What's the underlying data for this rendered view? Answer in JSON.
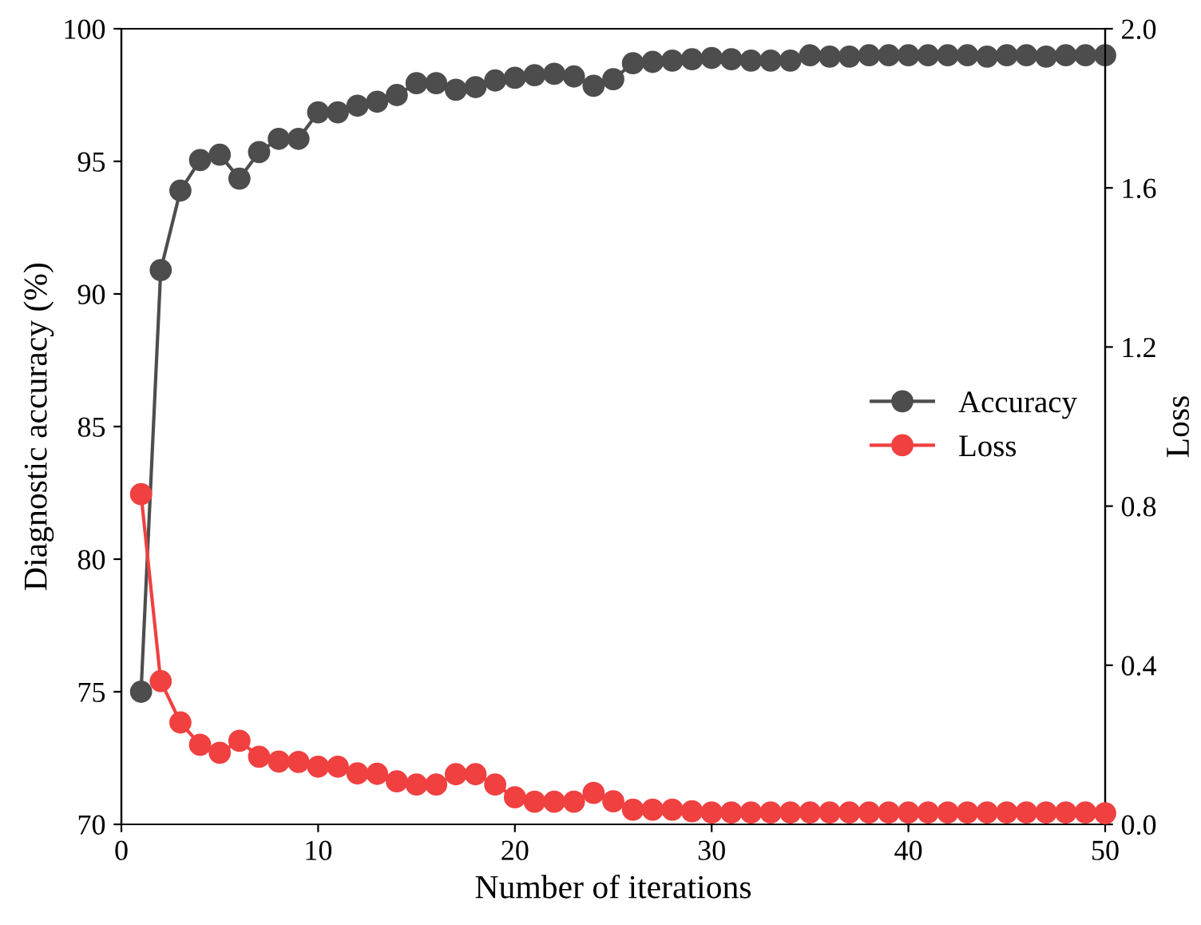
{
  "chart_data": {
    "type": "line",
    "xlabel": "Number of iterations",
    "ylabel": "Diagnostic accuracy (%)",
    "y2label": "Loss",
    "x": [
      1,
      2,
      3,
      4,
      5,
      6,
      7,
      8,
      9,
      10,
      11,
      12,
      13,
      14,
      15,
      16,
      17,
      18,
      19,
      20,
      21,
      22,
      23,
      24,
      25,
      26,
      27,
      28,
      29,
      30,
      31,
      32,
      33,
      34,
      35,
      36,
      37,
      38,
      39,
      40,
      41,
      42,
      43,
      44,
      45,
      46,
      47,
      48,
      49,
      50
    ],
    "series": [
      {
        "name": "Accuracy",
        "color": "#4d4d4d",
        "values": [
          75.0,
          90.9,
          93.9,
          95.05,
          95.25,
          94.35,
          95.35,
          95.85,
          95.85,
          96.85,
          96.85,
          97.1,
          97.25,
          97.5,
          97.95,
          97.95,
          97.7,
          97.8,
          98.05,
          98.15,
          98.25,
          98.3,
          98.2,
          97.85,
          98.1,
          98.7,
          98.75,
          98.8,
          98.85,
          98.9,
          98.85,
          98.8,
          98.8,
          98.8,
          99.0,
          98.95,
          98.95,
          99.0,
          99.0,
          99.0,
          99.0,
          99.0,
          99.0,
          98.95,
          99.0,
          99.0,
          98.95,
          99.0,
          99.0,
          99.0
        ]
      },
      {
        "name": "Loss",
        "color": "#f04040",
        "axis": "y2",
        "values": [
          0.83,
          0.36,
          0.256,
          0.2,
          0.18,
          0.21,
          0.17,
          0.158,
          0.157,
          0.145,
          0.145,
          0.128,
          0.127,
          0.108,
          0.1,
          0.1,
          0.126,
          0.126,
          0.1,
          0.068,
          0.057,
          0.057,
          0.057,
          0.079,
          0.058,
          0.037,
          0.037,
          0.037,
          0.033,
          0.03,
          0.03,
          0.03,
          0.03,
          0.03,
          0.03,
          0.03,
          0.03,
          0.03,
          0.03,
          0.03,
          0.03,
          0.03,
          0.03,
          0.03,
          0.03,
          0.03,
          0.03,
          0.03,
          0.03,
          0.028
        ]
      }
    ],
    "xlim": [
      0,
      50
    ],
    "xticks": [
      0,
      10,
      20,
      30,
      40,
      50
    ],
    "ylim": [
      70,
      100
    ],
    "yticks": [
      70,
      75,
      80,
      85,
      90,
      95,
      100
    ],
    "y2lim": [
      0,
      2.0
    ],
    "y2ticks": [
      {
        "value": 0,
        "label": "0.0"
      },
      {
        "value": 0.4,
        "label": "0.4"
      },
      {
        "value": 0.8,
        "label": "0.8"
      },
      {
        "value": 1.2,
        "label": "1.2"
      },
      {
        "value": 1.6,
        "label": "1.6"
      },
      {
        "value": 2.0,
        "label": "2.0"
      }
    ],
    "marker": "circle",
    "line_style": "solid",
    "legend": "right",
    "grid": false
  }
}
